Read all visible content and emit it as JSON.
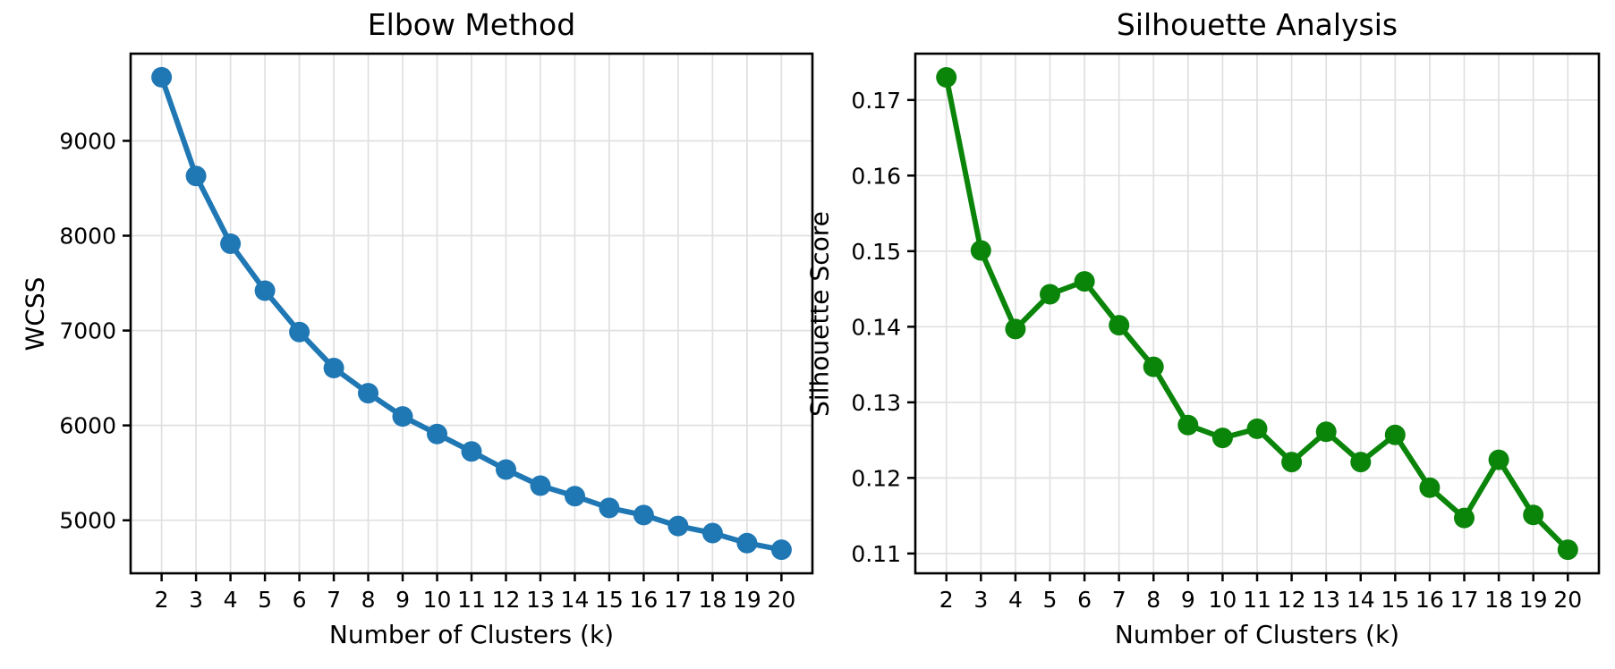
{
  "figure": {
    "background": "#ffffff",
    "grid_color": "#e0e0e0",
    "spine_color": "#000000",
    "tick_color": "#000000"
  },
  "chart_data": [
    {
      "type": "line",
      "title": "Elbow Method",
      "xlabel": "Number of Clusters (k)",
      "ylabel": "WCSS",
      "series_color": "#1f77b4",
      "grid": true,
      "legend": "none",
      "x": [
        2,
        3,
        4,
        5,
        6,
        7,
        8,
        9,
        10,
        11,
        12,
        13,
        14,
        15,
        16,
        17,
        18,
        19,
        20
      ],
      "y": [
        9670,
        8630,
        7915,
        7420,
        6985,
        6605,
        6340,
        6095,
        5910,
        5725,
        5535,
        5365,
        5255,
        5130,
        5055,
        4940,
        4865,
        4760,
        4690
      ],
      "xticks": [
        2,
        3,
        4,
        5,
        6,
        7,
        8,
        9,
        10,
        11,
        12,
        13,
        14,
        15,
        16,
        17,
        18,
        19,
        20
      ],
      "xtick_labels": [
        "2",
        "3",
        "4",
        "5",
        "6",
        "7",
        "8",
        "9",
        "10",
        "11",
        "12",
        "13",
        "14",
        "15",
        "16",
        "17",
        "18",
        "19",
        "20"
      ],
      "yticks": [
        5000,
        6000,
        7000,
        8000,
        9000
      ],
      "ytick_labels": [
        "5000",
        "6000",
        "7000",
        "8000",
        "9000"
      ],
      "xlim": [
        1.1,
        20.9
      ],
      "ylim": [
        4441,
        9919
      ]
    },
    {
      "type": "line",
      "title": "Silhouette Analysis",
      "xlabel": "Number of Clusters (k)",
      "ylabel": "Silhouette Score",
      "series_color": "#0a850a",
      "grid": true,
      "legend": "none",
      "x": [
        2,
        3,
        4,
        5,
        6,
        7,
        8,
        9,
        10,
        11,
        12,
        13,
        14,
        15,
        16,
        17,
        18,
        19,
        20
      ],
      "y": [
        0.173,
        0.1501,
        0.1397,
        0.1443,
        0.146,
        0.1402,
        0.1347,
        0.127,
        0.1253,
        0.1265,
        0.1221,
        0.1261,
        0.1221,
        0.1257,
        0.1187,
        0.1147,
        0.1224,
        0.1151,
        0.1105
      ],
      "xticks": [
        2,
        3,
        4,
        5,
        6,
        7,
        8,
        9,
        10,
        11,
        12,
        13,
        14,
        15,
        16,
        17,
        18,
        19,
        20
      ],
      "xtick_labels": [
        "2",
        "3",
        "4",
        "5",
        "6",
        "7",
        "8",
        "9",
        "10",
        "11",
        "12",
        "13",
        "14",
        "15",
        "16",
        "17",
        "18",
        "19",
        "20"
      ],
      "yticks": [
        0.11,
        0.12,
        0.13,
        0.14,
        0.15,
        0.16,
        0.17
      ],
      "ytick_labels": [
        "0.11",
        "0.12",
        "0.13",
        "0.14",
        "0.15",
        "0.16",
        "0.17"
      ],
      "xlim": [
        1.1,
        20.9
      ],
      "ylim": [
        0.10738,
        0.17613
      ]
    }
  ]
}
